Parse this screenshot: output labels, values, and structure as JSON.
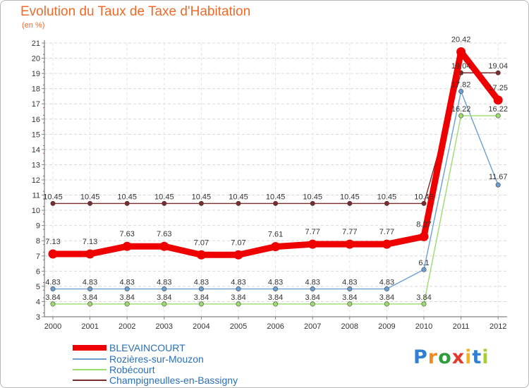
{
  "chart_data": {
    "type": "line",
    "title": "Evolution du Taux de Taxe d'Habitation",
    "subtitle": "(en %)",
    "xlabel": "",
    "ylabel": "",
    "ylim": [
      3,
      21
    ],
    "y_ticks": [
      "3",
      "4",
      "5",
      "6",
      "7",
      "8",
      "9",
      "10",
      "11",
      "12",
      "13",
      "14",
      "15",
      "16",
      "17",
      "18",
      "19",
      "20",
      "21"
    ],
    "categories": [
      "2000",
      "2001",
      "2002",
      "2003",
      "2004",
      "2005",
      "2006",
      "2007",
      "2008",
      "2009",
      "2010",
      "2011",
      "2012"
    ],
    "grid": true,
    "legend_position": "bottom-left",
    "series": [
      {
        "name": "BLEVAINCOURT",
        "color": "#ee0000",
        "values": [
          7.13,
          7.13,
          7.63,
          7.63,
          7.07,
          7.07,
          7.61,
          7.77,
          7.77,
          7.77,
          8.27,
          20.42,
          17.25
        ],
        "labels": [
          "7.13",
          "7.13",
          "7.63",
          "7.63",
          "7.07",
          "7.07",
          "7.61",
          "7.77",
          "7.77",
          "7.77",
          "8.27",
          "20.42",
          "17.25"
        ]
      },
      {
        "name": "Rozières-sur-Mouzon",
        "color": "#6a9fd0",
        "values": [
          4.83,
          4.83,
          4.83,
          4.83,
          4.83,
          4.83,
          4.83,
          4.83,
          4.83,
          4.83,
          6.1,
          17.82,
          11.67
        ],
        "labels": [
          "4.83",
          "4.83",
          "4.83",
          "4.83",
          "4.83",
          "4.83",
          "4.83",
          "4.83",
          "4.83",
          "4.83",
          "6.1",
          "17.82",
          "11.67"
        ]
      },
      {
        "name": "Robécourt",
        "color": "#9cdc6c",
        "values": [
          3.84,
          3.84,
          3.84,
          3.84,
          3.84,
          3.84,
          3.84,
          3.84,
          3.84,
          3.84,
          3.84,
          16.22,
          16.22
        ],
        "labels": [
          "3.84",
          "3.84",
          "3.84",
          "3.84",
          "3.84",
          "3.84",
          "3.84",
          "3.84",
          "3.84",
          "3.84",
          "3.84",
          "16.22",
          "16.22"
        ]
      },
      {
        "name": "Champigneulles-en-Bassigny",
        "color": "#7a2b2b",
        "values": [
          10.45,
          10.45,
          10.45,
          10.45,
          10.45,
          10.45,
          10.45,
          10.45,
          10.45,
          10.45,
          10.45,
          19.04,
          19.04
        ],
        "labels": [
          "10.45",
          "10.45",
          "10.45",
          "10.45",
          "10.45",
          "10.45",
          "10.45",
          "10.45",
          "10.45",
          "10.45",
          "10.45",
          "19.04",
          "19.04"
        ]
      }
    ]
  },
  "logo": {
    "text": "Proxiti",
    "letters": [
      "P",
      "r",
      "o",
      "x",
      "i",
      "t",
      "i"
    ],
    "colors": [
      "#2f7fd2",
      "#f28a1e",
      "#2f9d3c",
      "#e03a2b",
      "#f2b51e",
      "#2f7fd2",
      "#a9cf2f"
    ]
  }
}
